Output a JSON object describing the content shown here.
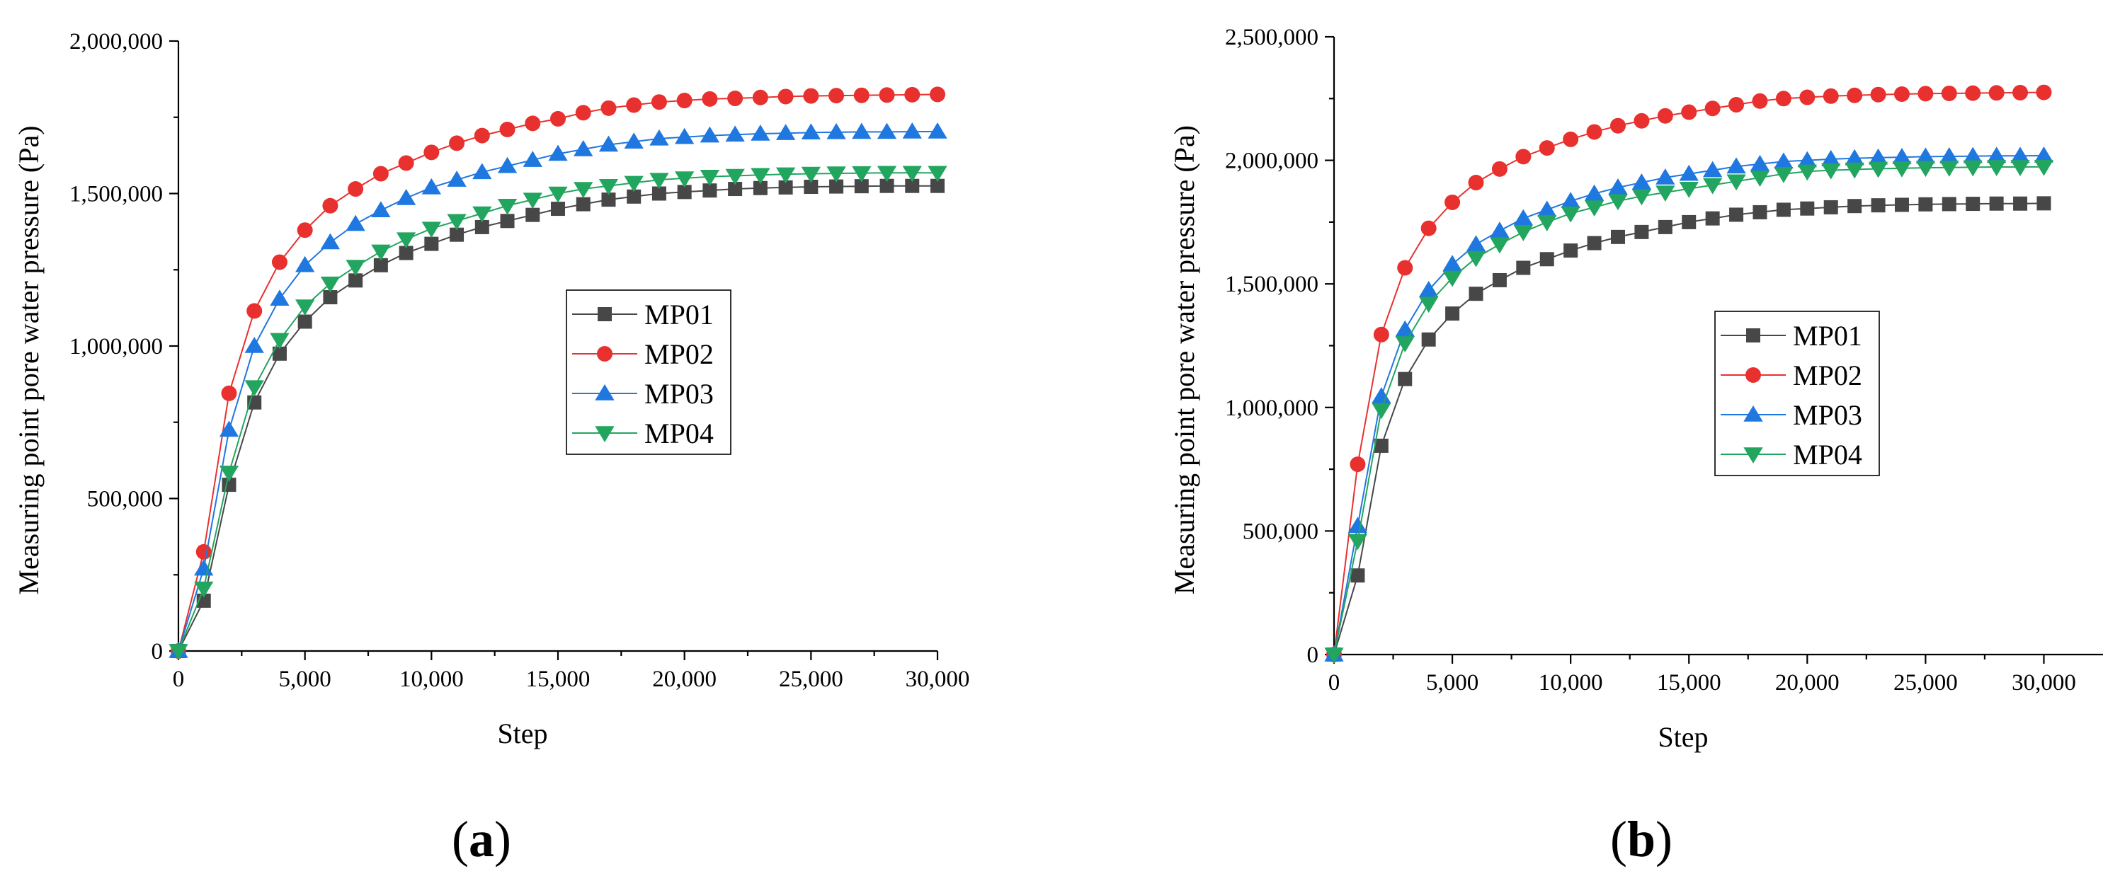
{
  "chart_data": [
    {
      "type": "line",
      "panel": "a",
      "xlabel": "Step",
      "ylabel": "Measuring point pore water pressure (Pa)",
      "xlim": [
        0,
        30000
      ],
      "ylim": [
        0,
        2000000
      ],
      "xticks": [
        0,
        5000,
        10000,
        15000,
        20000,
        25000,
        30000
      ],
      "xtick_labels": [
        "0",
        "5,000",
        "10,000",
        "15,000",
        "20,000",
        "25,000",
        "30,000"
      ],
      "yticks": [
        0,
        500000,
        1000000,
        1500000,
        2000000
      ],
      "ytick_labels": [
        "0",
        "500,000",
        "1,000,000",
        "1,500,000",
        "2,000,000"
      ],
      "legend_position": "center-right",
      "x": [
        0,
        1000,
        2000,
        3000,
        4000,
        5000,
        6000,
        7000,
        8000,
        9000,
        10000,
        11000,
        12000,
        13000,
        14000,
        15000,
        16000,
        17000,
        18000,
        19000,
        20000,
        21000,
        22000,
        23000,
        24000,
        25000,
        26000,
        27000,
        28000,
        29000,
        30000
      ],
      "series": [
        {
          "name": "MP01",
          "marker": "square",
          "color": "#474747",
          "values": [
            0,
            165000,
            545000,
            815000,
            975000,
            1080000,
            1160000,
            1215000,
            1265000,
            1305000,
            1335000,
            1365000,
            1390000,
            1410000,
            1430000,
            1450000,
            1465000,
            1480000,
            1490000,
            1500000,
            1505000,
            1510000,
            1515000,
            1518000,
            1520000,
            1522000,
            1523000,
            1524000,
            1525000,
            1525000,
            1525000
          ]
        },
        {
          "name": "MP02",
          "marker": "circle",
          "color": "#e8312f",
          "values": [
            0,
            325000,
            845000,
            1115000,
            1275000,
            1380000,
            1460000,
            1515000,
            1565000,
            1600000,
            1635000,
            1665000,
            1690000,
            1710000,
            1730000,
            1745000,
            1765000,
            1780000,
            1790000,
            1800000,
            1805000,
            1810000,
            1812000,
            1815000,
            1818000,
            1820000,
            1821000,
            1822000,
            1823000,
            1824000,
            1825000
          ]
        },
        {
          "name": "MP03",
          "marker": "triangle-up",
          "color": "#1f77e0",
          "values": [
            0,
            270000,
            725000,
            1000000,
            1155000,
            1265000,
            1340000,
            1400000,
            1445000,
            1485000,
            1520000,
            1545000,
            1570000,
            1590000,
            1610000,
            1630000,
            1645000,
            1660000,
            1670000,
            1680000,
            1685000,
            1690000,
            1693000,
            1696000,
            1698000,
            1700000,
            1701000,
            1702000,
            1702000,
            1703000,
            1703000
          ]
        },
        {
          "name": "MP04",
          "marker": "triangle-down",
          "color": "#22a55f",
          "values": [
            0,
            205000,
            585000,
            865000,
            1020000,
            1130000,
            1205000,
            1260000,
            1310000,
            1350000,
            1385000,
            1410000,
            1435000,
            1460000,
            1480000,
            1500000,
            1515000,
            1525000,
            1535000,
            1545000,
            1550000,
            1555000,
            1558000,
            1561000,
            1563000,
            1565000,
            1566000,
            1567000,
            1568000,
            1568000,
            1568000
          ]
        }
      ]
    },
    {
      "type": "line",
      "panel": "b",
      "xlabel": "Step",
      "ylabel": "Measuring point pore water pressure (Pa)",
      "xlim": [
        0,
        32500
      ],
      "ylim": [
        0,
        2500000
      ],
      "xticks": [
        0,
        5000,
        10000,
        15000,
        20000,
        25000,
        30000
      ],
      "xtick_labels": [
        "0",
        "5,000",
        "10,000",
        "15,000",
        "20,000",
        "25,000",
        "30,000"
      ],
      "yticks": [
        0,
        500000,
        1000000,
        1500000,
        2000000,
        2500000
      ],
      "ytick_labels": [
        "0",
        "500,000",
        "1,000,000",
        "1,500,000",
        "2,000,000",
        "2,500,000"
      ],
      "legend_position": "center-right",
      "x": [
        0,
        1000,
        2000,
        3000,
        4000,
        5000,
        6000,
        7000,
        8000,
        9000,
        10000,
        11000,
        12000,
        13000,
        14000,
        15000,
        16000,
        17000,
        18000,
        19000,
        20000,
        21000,
        22000,
        23000,
        24000,
        25000,
        26000,
        27000,
        28000,
        29000,
        30000
      ],
      "series": [
        {
          "name": "MP01",
          "marker": "square",
          "color": "#474747",
          "values": [
            0,
            320000,
            845000,
            1115000,
            1275000,
            1380000,
            1460000,
            1515000,
            1565000,
            1600000,
            1635000,
            1665000,
            1690000,
            1710000,
            1730000,
            1750000,
            1765000,
            1780000,
            1790000,
            1800000,
            1805000,
            1810000,
            1815000,
            1818000,
            1820000,
            1822000,
            1823000,
            1824000,
            1825000,
            1825000,
            1826000
          ]
        },
        {
          "name": "MP02",
          "marker": "circle",
          "color": "#e8312f",
          "values": [
            0,
            770000,
            1295000,
            1565000,
            1725000,
            1830000,
            1910000,
            1965000,
            2015000,
            2050000,
            2085000,
            2115000,
            2140000,
            2160000,
            2180000,
            2195000,
            2210000,
            2225000,
            2240000,
            2250000,
            2255000,
            2260000,
            2263000,
            2266000,
            2268000,
            2270000,
            2271000,
            2272000,
            2273000,
            2274000,
            2275000
          ]
        },
        {
          "name": "MP03",
          "marker": "triangle-up",
          "color": "#1f77e0",
          "values": [
            0,
            520000,
            1045000,
            1315000,
            1475000,
            1580000,
            1660000,
            1715000,
            1765000,
            1800000,
            1835000,
            1865000,
            1890000,
            1910000,
            1930000,
            1945000,
            1960000,
            1975000,
            1985000,
            1995000,
            2000000,
            2005000,
            2008000,
            2011000,
            2013000,
            2015000,
            2016000,
            2017000,
            2018000,
            2018000,
            2019000
          ]
        },
        {
          "name": "MP04",
          "marker": "triangle-down",
          "color": "#22a55f",
          "values": [
            0,
            460000,
            990000,
            1260000,
            1420000,
            1525000,
            1605000,
            1660000,
            1710000,
            1750000,
            1785000,
            1810000,
            1835000,
            1855000,
            1870000,
            1885000,
            1900000,
            1915000,
            1930000,
            1945000,
            1955000,
            1960000,
            1963000,
            1966000,
            1968000,
            1970000,
            1971000,
            1972000,
            1973000,
            1973000,
            1974000
          ]
        }
      ]
    }
  ],
  "panel_labels": [
    {
      "open": "(",
      "letter": "a",
      "close": ")"
    },
    {
      "open": "(",
      "letter": "b",
      "close": ")"
    }
  ]
}
